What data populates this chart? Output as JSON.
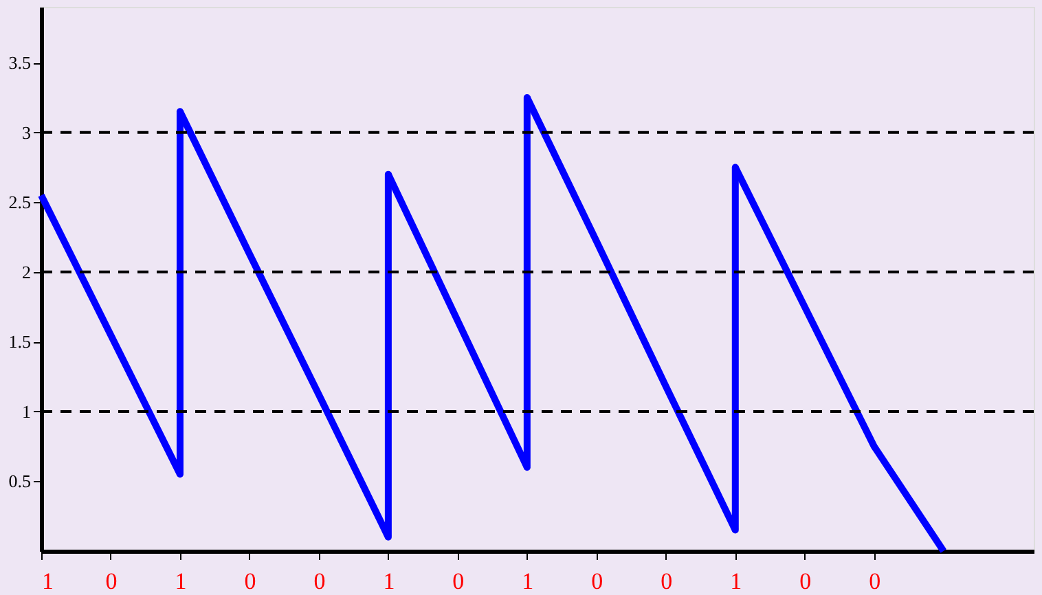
{
  "chart_data": {
    "type": "line",
    "categories": [
      "1",
      "0",
      "1",
      "0",
      "0",
      "1",
      "0",
      "1",
      "0",
      "0",
      "1",
      "0",
      "0",
      null
    ],
    "series": [
      {
        "color": "#0000ff",
        "values": [
          2.55,
          1.55,
          0.55,
          null,
          null,
          null,
          null,
          null,
          null,
          null,
          null,
          null,
          null,
          null
        ]
      },
      {
        "color": "#0000ff",
        "values": [
          null,
          null,
          3.15,
          2.13,
          1.12,
          0.1,
          null,
          null,
          null,
          null,
          null,
          null,
          null,
          null
        ],
        "errors": [
          null,
          null,
          [
            0.55,
            3.15
          ],
          null,
          null,
          null,
          null,
          null,
          null,
          null,
          null,
          null,
          null,
          null
        ]
      },
      {
        "color": "#0000ff",
        "values": [
          null,
          null,
          null,
          null,
          null,
          2.7,
          1.65,
          0.6,
          null,
          null,
          null,
          null,
          null,
          null
        ],
        "errors": [
          null,
          null,
          null,
          null,
          null,
          [
            0.1,
            2.7
          ],
          null,
          null,
          null,
          null,
          null,
          null,
          null,
          null
        ]
      },
      {
        "color": "#0000ff",
        "values": [
          null,
          null,
          null,
          null,
          null,
          null,
          null,
          3.25,
          2.22,
          1.18,
          0.15,
          null,
          null,
          null
        ],
        "errors": [
          null,
          null,
          null,
          null,
          null,
          null,
          null,
          [
            0.6,
            3.25
          ],
          null,
          null,
          null,
          null,
          null,
          null
        ]
      },
      {
        "color": "#0000ff",
        "values": [
          null,
          null,
          null,
          null,
          null,
          null,
          null,
          null,
          null,
          null,
          2.75,
          1.75,
          0.75,
          0
        ],
        "errors": [
          null,
          null,
          null,
          null,
          null,
          null,
          null,
          null,
          null,
          null,
          [
            0.15,
            2.75
          ],
          null,
          null,
          null
        ]
      }
    ],
    "ylim": [
      0,
      3.9
    ],
    "yticks": [
      0.5,
      1,
      1.5,
      2,
      2.5,
      3,
      3.5
    ],
    "ref_lines": [
      {
        "axis": "y",
        "value": 1,
        "color": "#000000",
        "line_style": "dashed"
      },
      {
        "axis": "y",
        "value": 2,
        "color": "#000000",
        "line_style": "dashed"
      },
      {
        "axis": "y",
        "value": 3,
        "color": "#000000",
        "line_style": "dashed"
      }
    ],
    "grid": false,
    "marker": "none",
    "line_style": "solid"
  }
}
